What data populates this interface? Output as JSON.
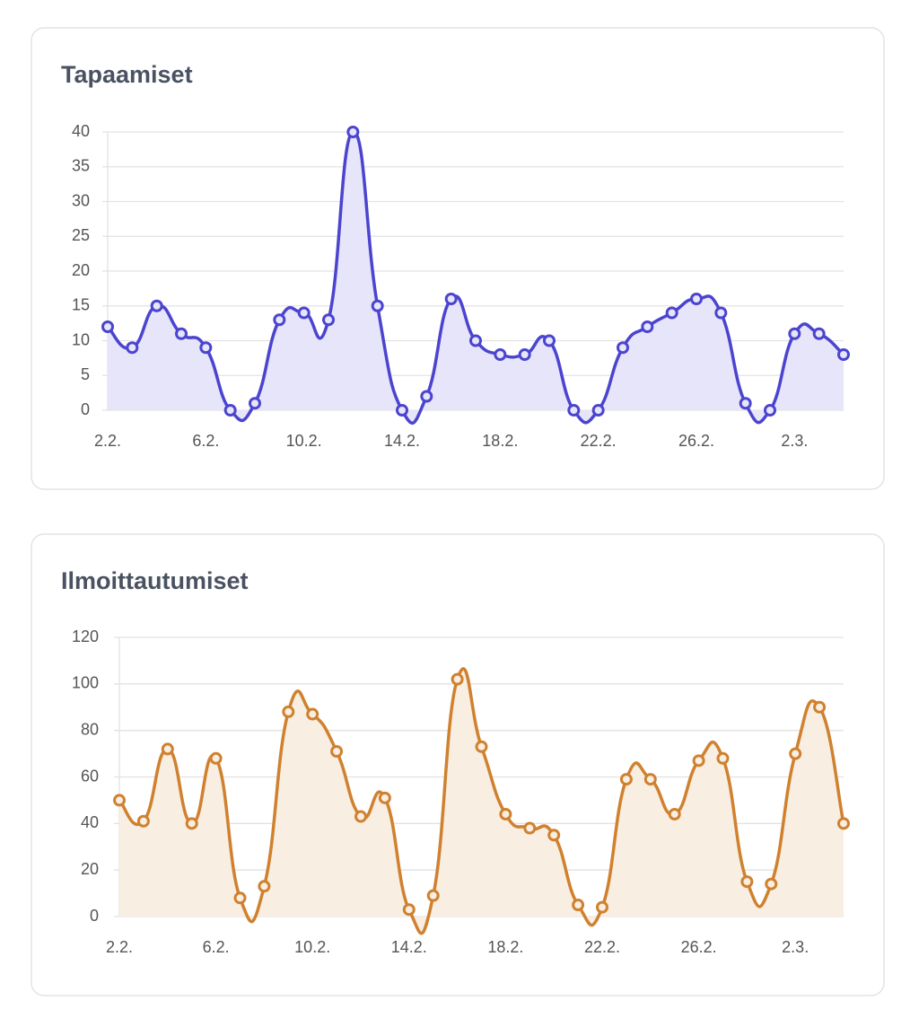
{
  "chart_data": [
    {
      "type": "line",
      "title": "Tapaamiset",
      "categories": [
        "2.2.",
        null,
        null,
        null,
        "6.2.",
        null,
        null,
        null,
        "10.2.",
        null,
        null,
        null,
        "14.2.",
        null,
        null,
        null,
        "18.2.",
        null,
        null,
        null,
        "22.2.",
        null,
        null,
        null,
        "26.2.",
        null,
        null,
        null,
        "2.3.",
        null,
        null
      ],
      "values": [
        12,
        9,
        15,
        11,
        9,
        0,
        1,
        13,
        14,
        13,
        40,
        15,
        0,
        2,
        16,
        10,
        8,
        8,
        10,
        0,
        0,
        9,
        12,
        14,
        16,
        14,
        1,
        0,
        11,
        11,
        8
      ],
      "color": "#4b44cf",
      "fill_color": "#e7e5f9",
      "ylim": [
        0,
        40
      ],
      "yticks": [
        0,
        5,
        10,
        15,
        20,
        25,
        30,
        35,
        40
      ],
      "grid": true
    },
    {
      "type": "line",
      "title": "Ilmoittautumiset",
      "categories": [
        "2.2.",
        null,
        null,
        null,
        "6.2.",
        null,
        null,
        null,
        "10.2.",
        null,
        null,
        null,
        "14.2.",
        null,
        null,
        null,
        "18.2.",
        null,
        null,
        null,
        "22.2.",
        null,
        null,
        null,
        "26.2.",
        null,
        null,
        null,
        "2.3.",
        null,
        null
      ],
      "values": [
        50,
        41,
        72,
        40,
        68,
        8,
        13,
        88,
        87,
        71,
        43,
        51,
        3,
        9,
        102,
        73,
        44,
        38,
        35,
        5,
        4,
        59,
        59,
        44,
        67,
        68,
        15,
        14,
        70,
        90,
        40
      ],
      "color": "#d0812f",
      "fill_color": "#f8eee2",
      "ylim": [
        0,
        120
      ],
      "yticks": [
        0,
        20,
        40,
        60,
        80,
        100,
        120
      ],
      "grid": true
    }
  ]
}
